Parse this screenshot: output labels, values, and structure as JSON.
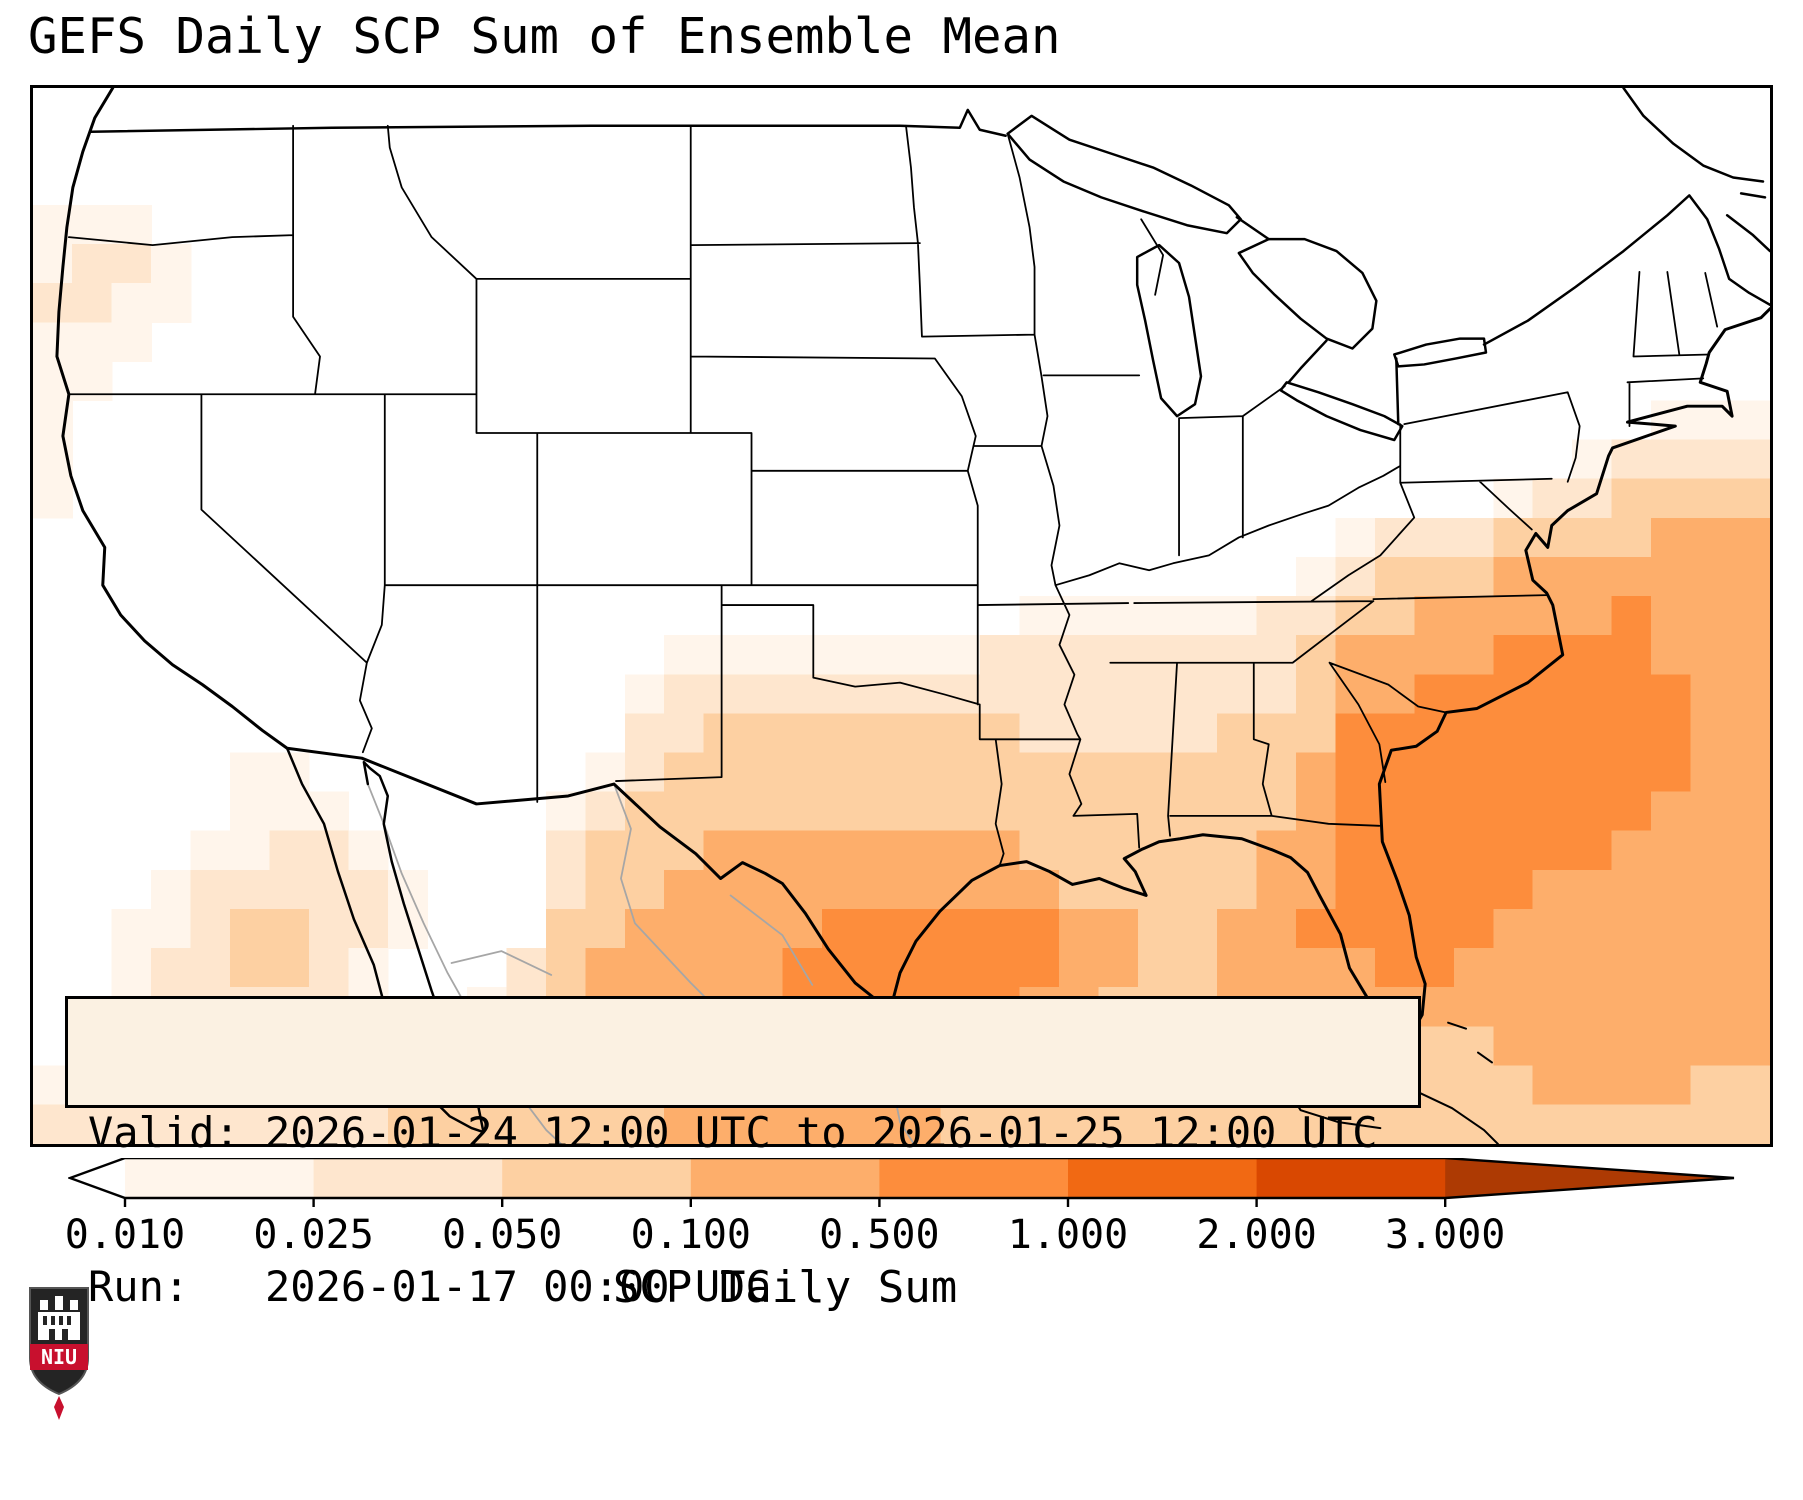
{
  "title": "GEFS Daily SCP Sum of Ensemble Mean",
  "info_box": {
    "valid_line": "Valid: 2026-01-24 12:00 UTC to 2026-01-25 12:00 UTC",
    "run_line": "Run:   2026-01-17 00:00 UTC",
    "valid_label": "Valid:",
    "valid_value": "2026-01-24 12:00 UTC to 2026-01-25 12:00 UTC",
    "run_label": "Run:",
    "run_value": "2026-01-17 00:00 UTC"
  },
  "colorbar": {
    "label": "SCP Daily Sum",
    "ticks": [
      "0.010",
      "0.025",
      "0.050",
      "0.100",
      "0.500",
      "1.000",
      "2.000",
      "3.000"
    ],
    "segment_colors": [
      "#fff5eb",
      "#fee6ce",
      "#fdd0a2",
      "#fdae6b",
      "#fd8d3c",
      "#f16913",
      "#d94801"
    ],
    "under_arrow_color": "#ffffff",
    "over_arrow_color": "#ad3a03",
    "outline_color": "#000000"
  },
  "logo": {
    "text": "NIU",
    "banner_color": "#c8102e",
    "shield_color": "#242424"
  },
  "chart_data": {
    "type": "heatmap",
    "title": "GEFS Daily SCP Sum of Ensemble Mean",
    "variable": "SCP Daily Sum",
    "region": "CONUS",
    "valid": "2026-01-24 12:00 UTC to 2026-01-25 12:00 UTC",
    "run": "2026-01-17 00:00 UTC",
    "levels": [
      0.01,
      0.025,
      0.05,
      0.1,
      0.5,
      1.0,
      2.0,
      3.0
    ],
    "colormap": "Oranges (filled contours, extend both)",
    "legend_position": "bottom",
    "grid": {
      "note": "coarse gridded SCP bins; digit = level bin index (0 = below 0.010 / no shading)",
      "cols": 44,
      "rows": 27,
      "palette": {
        "1": "#fff5eb",
        "2": "#fee6ce",
        "3": "#fdd0a2",
        "4": "#fdae6b",
        "5": "#fd8d3c",
        "6": "#f16913"
      },
      "rows_encoded": [
        "00000000000000000000000000000000000000000000",
        "00000000000000000000000000000000000000000000",
        "00000000000000000000000000000000000000000000",
        "11100000000000000000000000000000000000000000",
        "12210000000000000000000000000000000000000000",
        "22110000000000000000000000000000000000000000",
        "11100000000000000000000000000000000000000000",
        "11000000000000000000000000000000000000000000",
        "10000000000000000000000000000000000000000111",
        "10000000000000000000000000000000000000012222",
        "10000000000000000000000000000000000001223333",
        "00000000000000000000000000000000012223333444",
        "00000000000000000000000000000000123334444444",
        "00000000000000000000000001111112233444445444",
        "00000000000000001111111122222222344445555444",
        "00000000000000012222222222222222344555555544",
        "00000000000000022333333332222233355555555544",
        "00000110000000123333333333333333455555555544",
        "00000111000001233333333333333333455555555444",
        "00001122100002333444444443333334455555554444",
        "00012222210002334444444444333334455555444444",
        "00112332210003344444555555443344555554444444",
        "00122332100023444445555555443344445544444444",
        "00122222100123444445555554433344444444444444",
        "01112221001233444445555444333334444334444444",
        "11111221022333344444444433333333333333444433",
        "22222222233333334444444333333333333333333333"
      ]
    }
  }
}
